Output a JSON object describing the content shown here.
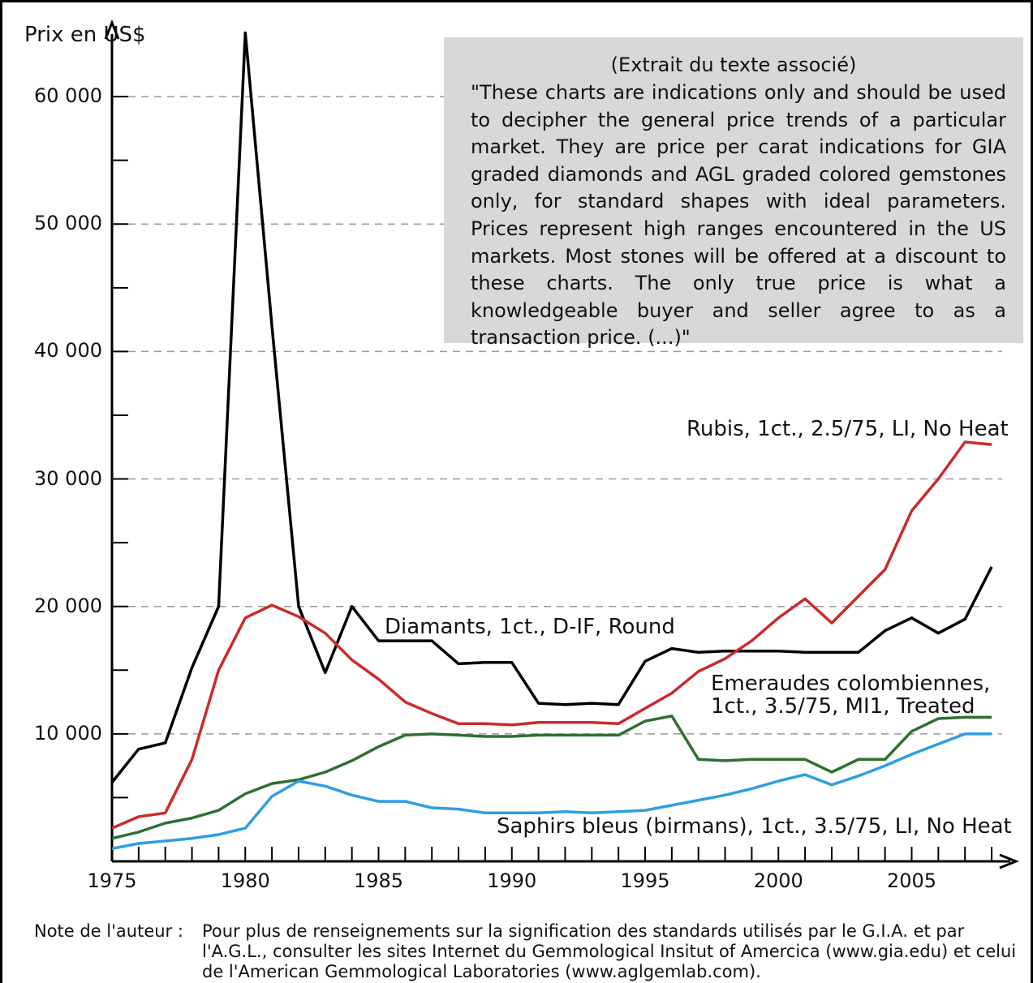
{
  "chart_data": {
    "type": "line",
    "yaxis_title": "Prix en US$",
    "y_tick_labels": [
      "60 000",
      "50 000",
      "40 000",
      "30 000",
      "20 000",
      "10 000"
    ],
    "y_ticks": [
      60000,
      50000,
      40000,
      30000,
      20000,
      10000
    ],
    "ylim": [
      0,
      65000
    ],
    "xlim": [
      1975,
      2008
    ],
    "x_tick_labels": [
      "1975",
      "1980",
      "1985",
      "1990",
      "1995",
      "2000",
      "2005"
    ],
    "x_ticks": [
      1975,
      1980,
      1985,
      1990,
      1995,
      2000,
      2005
    ],
    "grid": "horizontal-dashed",
    "x": [
      1975,
      1976,
      1977,
      1978,
      1979,
      1980,
      1981,
      1982,
      1983,
      1984,
      1985,
      1986,
      1987,
      1988,
      1989,
      1990,
      1991,
      1992,
      1993,
      1994,
      1995,
      1996,
      1997,
      1998,
      1999,
      2000,
      2001,
      2002,
      2003,
      2004,
      2005,
      2006,
      2007,
      2008
    ],
    "series": [
      {
        "name": "Diamants, 1ct., D-IF, Round",
        "color": "#000000",
        "values": [
          6200,
          8800,
          9300,
          15200,
          20000,
          65000,
          42000,
          20000,
          14800,
          20000,
          17300,
          17300,
          17300,
          15500,
          15600,
          15600,
          12400,
          12300,
          12400,
          12300,
          15700,
          16700,
          16400,
          16500,
          16500,
          16500,
          16400,
          16400,
          16400,
          18100,
          19100,
          17900,
          19000,
          23100
        ]
      },
      {
        "name": "Rubis, 1ct., 2.5/75, LI, No Heat",
        "color": "#cc2a2a",
        "values": [
          2600,
          3500,
          3800,
          8000,
          15000,
          19100,
          20100,
          19200,
          17900,
          15800,
          14300,
          12500,
          11600,
          10800,
          10800,
          10700,
          10900,
          10900,
          10900,
          10800,
          12000,
          13200,
          14900,
          15900,
          17300,
          19100,
          20600,
          18700,
          20800,
          22900,
          27500,
          30000,
          32900,
          32700
        ]
      },
      {
        "name": "Emeraudes colombiennes, 1ct., 3.5/75, MI1, Treated",
        "color": "#2e6f33",
        "values": [
          1800,
          2300,
          3000,
          3400,
          4000,
          5300,
          6100,
          6400,
          7000,
          7900,
          9000,
          9900,
          10000,
          9900,
          9800,
          9800,
          9900,
          9900,
          9900,
          9900,
          11000,
          11400,
          8000,
          7900,
          8000,
          8000,
          8000,
          7000,
          8000,
          8000,
          10200,
          11200,
          11300,
          11300
        ]
      },
      {
        "name": "Saphirs bleus (birmans), 1ct., 3.5/75, LI, No Heat",
        "color": "#2f9ee0",
        "values": [
          1000,
          1400,
          1600,
          1800,
          2100,
          2600,
          5100,
          6300,
          5900,
          5200,
          4700,
          4700,
          4200,
          4100,
          3800,
          3800,
          3800,
          3900,
          3800,
          3900,
          4000,
          4400,
          4800,
          5200,
          5700,
          6300,
          6800,
          6000,
          6700,
          7500,
          8400,
          9200,
          10000,
          10000
        ]
      }
    ]
  },
  "note_box": {
    "title": "(Extrait du texte associé)",
    "text": "\"These charts are indications only and should be used to decipher the general price trends of a particular market. They are price per carat indications for GIA graded diamonds and AGL graded colored gemstones only, for standard shapes with ideal parameters. Prices represent high ranges encountered in the US markets. Most stones will be offered at a discount to these charts. The only true price is what a knowledgeable buyer and seller agree to as a transaction price. (...)\""
  },
  "labels": {
    "rubis": "Rubis, 1ct., 2.5/75, LI, No Heat",
    "diamants": "Diamants, 1ct., D-IF, Round",
    "emeraudes_1": "Emeraudes colombiennes,",
    "emeraudes_2": "1ct., 3.5/75, MI1, Treated",
    "saphirs": "Saphirs bleus (birmans), 1ct., 3.5/75, LI, No Heat"
  },
  "footer": {
    "key": "Note de l'auteur :",
    "text": "Pour plus de renseignements sur la signification des standards utilisés par le G.I.A. et par l'A.G.L., consulter les sites Internet du Gemmological Insitut of Amercica (www.gia.edu) et celui de l'American Gemmological Laboratories (www.aglgemlab.com)."
  }
}
